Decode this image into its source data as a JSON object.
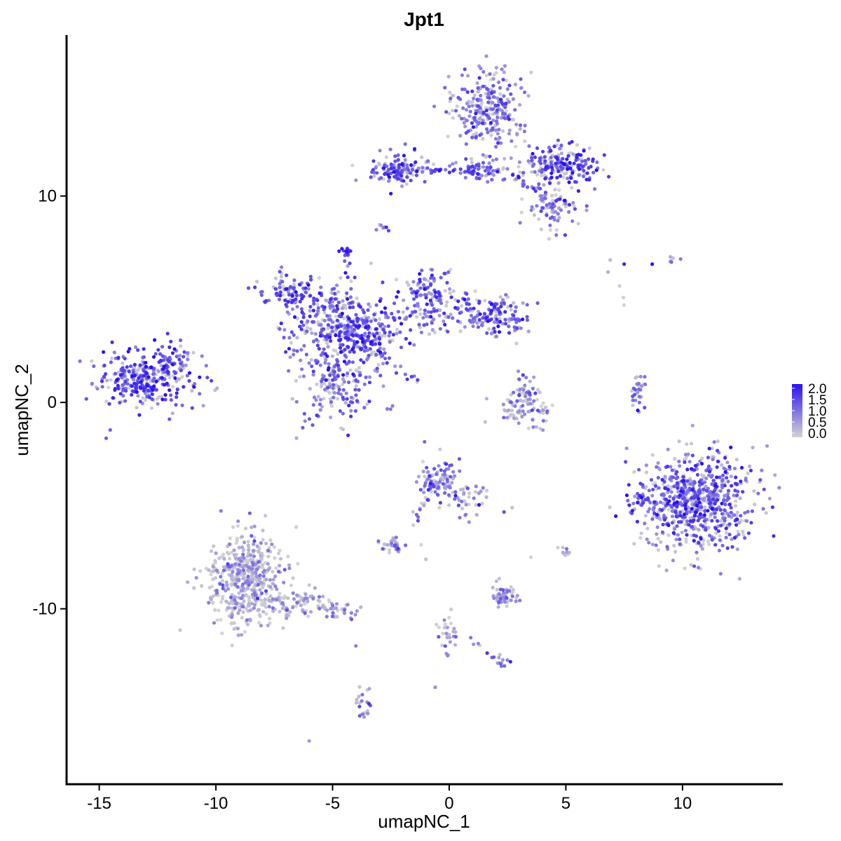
{
  "chart_data": {
    "type": "scatter",
    "title": "Jpt1",
    "xlabel": "umapNC_1",
    "ylabel": "umapNC_2",
    "xlim": [
      -16.4,
      14.3
    ],
    "ylim": [
      -18.5,
      17.8
    ],
    "xticks": [
      -15,
      -10,
      -5,
      0,
      5,
      10
    ],
    "yticks": [
      10,
      0,
      -10
    ],
    "xtick_labels": [
      "-15",
      "-10",
      "-5",
      "0",
      "5",
      "10"
    ],
    "ytick_labels": [
      "10",
      "0",
      "-10"
    ],
    "grid": false,
    "color_scale": {
      "low_color": "#d3d3d3",
      "high_color": "#2a11f2",
      "min": 0.0,
      "max": 2.0,
      "legend_labels": [
        "2.0",
        "1.5",
        "1.0",
        "0.5",
        "0.0"
      ],
      "legend_values": [
        2.0,
        1.5,
        1.0,
        0.5,
        0.0
      ],
      "legend_position": "right"
    },
    "clusters": [
      {
        "cx": -13.0,
        "cy": 1.2,
        "sx": 1.1,
        "sy": 0.7,
        "n": 320,
        "expr": 1.3
      },
      {
        "cx": -11.8,
        "cy": 2.2,
        "sx": 0.4,
        "sy": 0.4,
        "n": 30,
        "expr": 1.5
      },
      {
        "cx": -6.8,
        "cy": 5.4,
        "sx": 0.6,
        "sy": 0.4,
        "n": 90,
        "expr": 1.3
      },
      {
        "cx": -5.0,
        "cy": 4.0,
        "sx": 1.0,
        "sy": 0.8,
        "n": 200,
        "expr": 1.2
      },
      {
        "cx": -4.8,
        "cy": 1.2,
        "sx": 1.0,
        "sy": 1.2,
        "n": 220,
        "expr": 1.1
      },
      {
        "cx": -3.5,
        "cy": 3.3,
        "sx": 0.8,
        "sy": 0.6,
        "n": 160,
        "expr": 1.3
      },
      {
        "cx": -1.0,
        "cy": 5.0,
        "sx": 0.7,
        "sy": 0.8,
        "n": 120,
        "expr": 1.1
      },
      {
        "cx": 1.6,
        "cy": 4.2,
        "sx": 1.1,
        "sy": 0.5,
        "n": 180,
        "expr": 1.2
      },
      {
        "cx": -4.4,
        "cy": 7.3,
        "sx": 0.15,
        "sy": 0.15,
        "n": 15,
        "expr": 1.5
      },
      {
        "cx": -2.3,
        "cy": 11.4,
        "sx": 0.6,
        "sy": 0.4,
        "n": 120,
        "expr": 1.2
      },
      {
        "cx": 1.6,
        "cy": 14.2,
        "sx": 0.8,
        "sy": 0.9,
        "n": 260,
        "expr": 0.9
      },
      {
        "cx": 4.8,
        "cy": 11.5,
        "sx": 0.8,
        "sy": 0.5,
        "n": 200,
        "expr": 1.3
      },
      {
        "cx": 4.5,
        "cy": 9.5,
        "sx": 0.6,
        "sy": 0.5,
        "n": 80,
        "expr": 0.8
      },
      {
        "cx": 1.5,
        "cy": 11.3,
        "sx": 0.6,
        "sy": 0.3,
        "n": 60,
        "expr": 1.0
      },
      {
        "cx": -2.8,
        "cy": 8.5,
        "sx": 0.15,
        "sy": 0.15,
        "n": 8,
        "expr": 1.2
      },
      {
        "cx": 3.2,
        "cy": -0.3,
        "sx": 0.6,
        "sy": 0.5,
        "n": 80,
        "expr": 0.5
      },
      {
        "cx": 3.3,
        "cy": 0.6,
        "sx": 0.3,
        "sy": 0.4,
        "n": 25,
        "expr": 1.1
      },
      {
        "cx": 8.1,
        "cy": 0.3,
        "sx": 0.15,
        "sy": 0.6,
        "n": 18,
        "expr": 1.0
      },
      {
        "cx": 10.6,
        "cy": -4.8,
        "sx": 1.2,
        "sy": 1.2,
        "n": 700,
        "expr": 1.1
      },
      {
        "cx": 8.2,
        "cy": -4.6,
        "sx": 0.2,
        "sy": 0.3,
        "n": 20,
        "expr": 1.3
      },
      {
        "cx": -8.7,
        "cy": -8.6,
        "sx": 0.8,
        "sy": 1.1,
        "n": 500,
        "expr": 0.35
      },
      {
        "cx": -6.5,
        "cy": -9.7,
        "sx": 0.8,
        "sy": 0.3,
        "n": 90,
        "expr": 0.4
      },
      {
        "cx": -4.6,
        "cy": -10.0,
        "sx": 0.4,
        "sy": 0.25,
        "n": 25,
        "expr": 0.9
      },
      {
        "cx": -0.5,
        "cy": -3.8,
        "sx": 0.4,
        "sy": 0.5,
        "n": 100,
        "expr": 0.9
      },
      {
        "cx": 0.8,
        "cy": -4.8,
        "sx": 0.5,
        "sy": 0.5,
        "n": 35,
        "expr": 0.9
      },
      {
        "cx": -2.5,
        "cy": -7.0,
        "sx": 0.3,
        "sy": 0.2,
        "n": 30,
        "expr": 0.8
      },
      {
        "cx": 2.4,
        "cy": -9.4,
        "sx": 0.3,
        "sy": 0.3,
        "n": 55,
        "expr": 0.6
      },
      {
        "cx": 0.0,
        "cy": -11.2,
        "sx": 0.2,
        "sy": 0.6,
        "n": 25,
        "expr": 0.6
      },
      {
        "cx": -3.6,
        "cy": -14.6,
        "sx": 0.15,
        "sy": 0.4,
        "n": 20,
        "expr": 0.9
      },
      {
        "cx": 5.0,
        "cy": -7.2,
        "sx": 0.15,
        "sy": 0.15,
        "n": 10,
        "expr": 0.8
      },
      {
        "cx": 2.4,
        "cy": -12.6,
        "sx": 0.15,
        "sy": 0.12,
        "n": 8,
        "expr": 1.0
      },
      {
        "cx": 9.6,
        "cy": 6.9,
        "sx": 0.2,
        "sy": 0.1,
        "n": 6,
        "expr": 0.6
      }
    ],
    "streams": [
      {
        "x1": -2.3,
        "y1": 11.2,
        "x2": 1.6,
        "y2": 11.2,
        "n": 40,
        "expr": 1.1
      },
      {
        "x1": -5.0,
        "y1": 3.8,
        "x2": -1.1,
        "y2": 0.7,
        "n": 35,
        "expr": 1.2
      },
      {
        "x1": -4.4,
        "y1": 6.8,
        "x2": -4.2,
        "y2": 4.5,
        "n": 10,
        "expr": 1.1
      },
      {
        "x1": -0.6,
        "y1": -4.0,
        "x2": -1.6,
        "y2": -6.0,
        "n": 15,
        "expr": 1.0
      },
      {
        "x1": -0.5,
        "y1": -10.5,
        "x2": 2.4,
        "y2": -12.6,
        "n": 15,
        "expr": 0.8
      },
      {
        "x1": 8.3,
        "y1": 1.0,
        "x2": 7.9,
        "y2": -0.2,
        "n": 12,
        "expr": 1.0
      },
      {
        "x1": 2.4,
        "y1": 11.0,
        "x2": 5.2,
        "y2": 9.6,
        "n": 25,
        "expr": 1.2
      },
      {
        "x1": 6.5,
        "y1": 7.0,
        "x2": 7.8,
        "y2": 4.6,
        "n": 4,
        "expr": 0.8
      }
    ],
    "points": [
      {
        "x": -6.0,
        "y": -16.4,
        "v": 0.6
      },
      {
        "x": 7.5,
        "y": 6.7,
        "v": 1.8
      },
      {
        "x": 6.9,
        "y": 6.9,
        "v": 0.3
      },
      {
        "x": -0.6,
        "y": -13.8,
        "v": 0.7
      },
      {
        "x": -1.2,
        "y": -6.9,
        "v": 0.0
      },
      {
        "x": -1.0,
        "y": -7.6,
        "v": 0.2
      },
      {
        "x": 2.7,
        "y": -5.1,
        "v": 0.2
      },
      {
        "x": 3.5,
        "y": -7.5,
        "v": 0.0
      },
      {
        "x": -4.0,
        "y": -11.8,
        "v": 0.9
      },
      {
        "x": 8.7,
        "y": 6.7,
        "v": 2.0
      }
    ]
  }
}
